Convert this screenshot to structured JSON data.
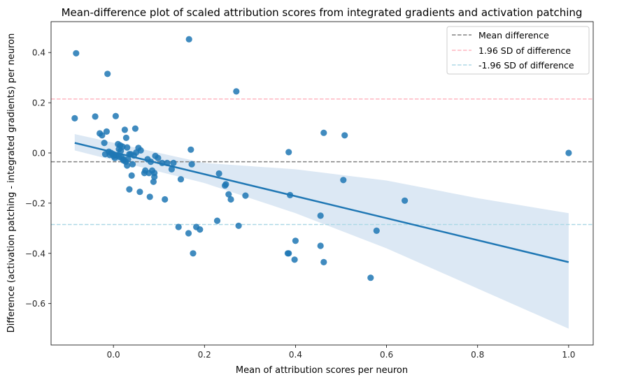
{
  "chart_data": {
    "type": "scatter",
    "title": "Mean-difference plot of scaled attribution scores from integrated gradients and activation patching",
    "xlabel": "Mean of attribution scores per neuron",
    "ylabel": "Difference (activation patching - integrated gradients) per neuron",
    "xlim": [
      -0.137,
      1.054
    ],
    "ylim": [
      -0.765,
      0.523
    ],
    "xticks": [
      0.0,
      0.2,
      0.4,
      0.6,
      0.8,
      1.0
    ],
    "yticks": [
      -0.6,
      -0.4,
      -0.2,
      0.0,
      0.2,
      0.4
    ],
    "xtick_labels": [
      "0.0",
      "0.2",
      "0.4",
      "0.6",
      "0.8",
      "1.0"
    ],
    "ytick_labels": [
      "−0.6",
      "−0.4",
      "−0.2",
      "0.0",
      "0.2",
      "0.4"
    ],
    "colors": {
      "points": "#1f77b4",
      "regression": "#1f77b4",
      "ci_band": "#dce8f4",
      "mean_line": "#808080",
      "upper_line": "#ffb6c1",
      "lower_line": "#add8e6"
    },
    "reference_lines": {
      "mean": -0.035,
      "upper": 0.215,
      "lower": -0.285
    },
    "legend": {
      "position": "top-right",
      "entries": [
        "Mean difference",
        "1.96 SD of difference",
        "-1.96 SD of difference"
      ]
    },
    "regression": {
      "x": [
        -0.085,
        1.0
      ],
      "y": [
        0.04,
        -0.435
      ],
      "ci_x": [
        -0.085,
        0.2,
        0.4,
        0.6,
        0.8,
        1.0
      ],
      "ci_upper": [
        0.075,
        -0.04,
        -0.065,
        -0.11,
        -0.18,
        -0.24
      ],
      "ci_lower": [
        0.01,
        -0.12,
        -0.24,
        -0.38,
        -0.54,
        -0.7
      ]
    },
    "series": [
      {
        "name": "neurons",
        "x": [
          -0.085,
          -0.082,
          -0.013,
          0.166,
          0.27,
          -0.04,
          -0.015,
          0.005,
          0.025,
          0.048,
          0.028,
          0.038,
          -0.03,
          -0.025,
          -0.02,
          0.01,
          0.015,
          0.02,
          0.03,
          0.055,
          0.06,
          -0.01,
          -0.005,
          0.0,
          0.005,
          0.008,
          0.012,
          0.018,
          0.022,
          0.035,
          0.045,
          0.05,
          0.012,
          0.016,
          0.003,
          0.022,
          0.027,
          0.03,
          -0.018,
          -0.008,
          0.0,
          0.032,
          0.042,
          0.075,
          0.082,
          0.092,
          0.098,
          0.107,
          0.118,
          0.132,
          0.07,
          0.085,
          0.09,
          0.04,
          0.035,
          0.078,
          0.058,
          0.113,
          0.17,
          0.172,
          0.232,
          0.247,
          0.245,
          0.253,
          0.258,
          0.29,
          0.385,
          0.388,
          0.462,
          0.508,
          0.505,
          1.0,
          0.385,
          0.455,
          0.64,
          0.578,
          0.143,
          0.165,
          0.175,
          0.182,
          0.19,
          0.228,
          0.275,
          0.383,
          0.4,
          0.398,
          0.455,
          0.462,
          0.565,
          0.128,
          0.148,
          0.068,
          0.08,
          0.088,
          0.09
        ],
        "y": [
          0.138,
          0.397,
          0.315,
          0.453,
          0.245,
          0.145,
          0.085,
          0.147,
          0.092,
          0.097,
          0.06,
          -0.005,
          0.078,
          0.07,
          0.04,
          0.035,
          0.03,
          0.025,
          0.022,
          0.02,
          0.01,
          0.005,
          0.0,
          -0.005,
          -0.01,
          -0.01,
          -0.015,
          -0.02,
          -0.025,
          -0.005,
          -0.01,
          0.002,
          0.015,
          0.008,
          -0.02,
          -0.03,
          -0.035,
          -0.05,
          -0.005,
          -0.008,
          -0.012,
          -0.025,
          -0.045,
          -0.025,
          -0.035,
          -0.012,
          -0.02,
          -0.04,
          -0.04,
          -0.04,
          -0.07,
          -0.07,
          -0.08,
          -0.09,
          -0.145,
          -0.08,
          -0.155,
          -0.185,
          0.013,
          -0.045,
          -0.082,
          -0.125,
          -0.13,
          -0.165,
          -0.185,
          -0.17,
          0.003,
          -0.168,
          0.08,
          0.07,
          -0.108,
          0.0,
          -0.4,
          -0.25,
          -0.19,
          -0.31,
          -0.295,
          -0.32,
          -0.4,
          -0.295,
          -0.305,
          -0.27,
          -0.29,
          -0.4,
          -0.35,
          -0.425,
          -0.37,
          -0.435,
          -0.497,
          -0.065,
          -0.105,
          -0.08,
          -0.175,
          -0.115,
          -0.095
        ]
      }
    ]
  }
}
